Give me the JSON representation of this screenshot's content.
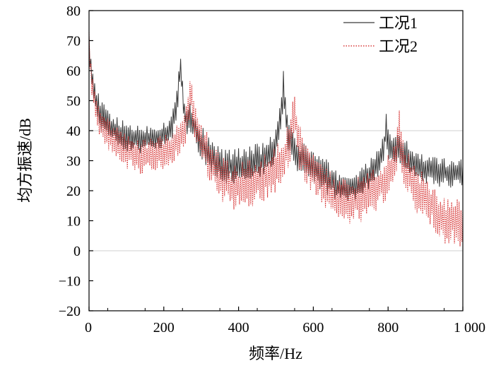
{
  "chart_data": {
    "type": "line",
    "title": "",
    "xlabel": "频率/Hz",
    "ylabel": "均方振速/dB",
    "xlim": [
      0,
      1000
    ],
    "ylim": [
      -20,
      80
    ],
    "x_ticks": [
      0,
      200,
      400,
      600,
      800,
      1000
    ],
    "x_tick_labels": [
      "0",
      "200",
      "400",
      "600",
      "800",
      "1 000"
    ],
    "y_ticks": [
      -20,
      -10,
      0,
      10,
      20,
      30,
      40,
      50,
      60,
      70,
      80
    ],
    "y_tick_labels": [
      "−20",
      "−10",
      "0",
      "10",
      "20",
      "30",
      "40",
      "50",
      "60",
      "70",
      "80"
    ],
    "gridlines_y": [
      0,
      40
    ],
    "legend_position": "top-right",
    "series": [
      {
        "name": "工况1",
        "color": "#3a3a3a",
        "style": "solid",
        "points": [
          [
            0,
            70
          ],
          [
            5,
            62
          ],
          [
            10,
            56
          ],
          [
            15,
            52
          ],
          [
            20,
            49
          ],
          [
            30,
            46
          ],
          [
            40,
            44
          ],
          [
            50,
            42.5
          ],
          [
            60,
            41
          ],
          [
            70,
            40
          ],
          [
            80,
            39
          ],
          [
            90,
            38.5
          ],
          [
            100,
            38
          ],
          [
            120,
            37.5
          ],
          [
            140,
            37
          ],
          [
            160,
            37.2
          ],
          [
            180,
            37.5
          ],
          [
            200,
            38.5
          ],
          [
            215,
            40
          ],
          [
            225,
            43
          ],
          [
            235,
            49
          ],
          [
            240,
            55
          ],
          [
            245,
            62
          ],
          [
            250,
            54
          ],
          [
            255,
            47
          ],
          [
            260,
            43
          ],
          [
            270,
            45
          ],
          [
            280,
            42
          ],
          [
            290,
            38
          ],
          [
            300,
            36
          ],
          [
            310,
            34
          ],
          [
            320,
            32
          ],
          [
            330,
            31
          ],
          [
            340,
            30
          ],
          [
            350,
            29
          ],
          [
            360,
            28.5
          ],
          [
            370,
            28
          ],
          [
            380,
            28
          ],
          [
            390,
            28
          ],
          [
            400,
            28.5
          ],
          [
            420,
            29
          ],
          [
            440,
            29.5
          ],
          [
            460,
            30
          ],
          [
            480,
            31
          ],
          [
            490,
            33
          ],
          [
            500,
            36
          ],
          [
            510,
            42
          ],
          [
            515,
            48
          ],
          [
            520,
            54
          ],
          [
            525,
            48
          ],
          [
            530,
            40
          ],
          [
            540,
            35
          ],
          [
            550,
            33
          ],
          [
            560,
            31
          ],
          [
            580,
            30
          ],
          [
            600,
            28
          ],
          [
            620,
            26
          ],
          [
            640,
            24
          ],
          [
            660,
            22
          ],
          [
            680,
            21
          ],
          [
            700,
            21
          ],
          [
            720,
            22
          ],
          [
            740,
            24
          ],
          [
            760,
            27
          ],
          [
            780,
            31
          ],
          [
            790,
            36
          ],
          [
            795,
            41
          ],
          [
            800,
            36
          ],
          [
            810,
            33
          ],
          [
            820,
            34
          ],
          [
            830,
            34
          ],
          [
            840,
            33
          ],
          [
            850,
            32
          ],
          [
            860,
            30
          ],
          [
            880,
            28
          ],
          [
            900,
            27
          ],
          [
            920,
            26.5
          ],
          [
            940,
            26
          ],
          [
            960,
            26
          ],
          [
            980,
            26
          ],
          [
            1000,
            26
          ]
        ],
        "ripple": [
          [
            0,
            300,
            5
          ],
          [
            300,
            640,
            6
          ],
          [
            640,
            1000,
            5
          ]
        ]
      },
      {
        "name": "工况2",
        "color": "#d83a3a",
        "style": "dotted",
        "points": [
          [
            0,
            67
          ],
          [
            5,
            60
          ],
          [
            10,
            54
          ],
          [
            15,
            50
          ],
          [
            20,
            47
          ],
          [
            30,
            43
          ],
          [
            40,
            41
          ],
          [
            50,
            39
          ],
          [
            60,
            37
          ],
          [
            70,
            36
          ],
          [
            80,
            35
          ],
          [
            90,
            34
          ],
          [
            100,
            33
          ],
          [
            120,
            32
          ],
          [
            140,
            31.5
          ],
          [
            160,
            31.5
          ],
          [
            180,
            32
          ],
          [
            200,
            32.5
          ],
          [
            215,
            34
          ],
          [
            230,
            36
          ],
          [
            245,
            38
          ],
          [
            255,
            40
          ],
          [
            265,
            46
          ],
          [
            270,
            52
          ],
          [
            275,
            50
          ],
          [
            280,
            44
          ],
          [
            290,
            40
          ],
          [
            300,
            36
          ],
          [
            310,
            33
          ],
          [
            320,
            31
          ],
          [
            330,
            29
          ],
          [
            340,
            27
          ],
          [
            350,
            25
          ],
          [
            360,
            24
          ],
          [
            370,
            23
          ],
          [
            380,
            22
          ],
          [
            390,
            21.5
          ],
          [
            400,
            21.5
          ],
          [
            420,
            22
          ],
          [
            440,
            23
          ],
          [
            460,
            24
          ],
          [
            480,
            25
          ],
          [
            500,
            27
          ],
          [
            520,
            30
          ],
          [
            535,
            36
          ],
          [
            545,
            42
          ],
          [
            550,
            48
          ],
          [
            555,
            42
          ],
          [
            560,
            36
          ],
          [
            570,
            32
          ],
          [
            580,
            30
          ],
          [
            600,
            27
          ],
          [
            620,
            24
          ],
          [
            640,
            21
          ],
          [
            650,
            18
          ],
          [
            660,
            17
          ],
          [
            680,
            16
          ],
          [
            700,
            16
          ],
          [
            720,
            17
          ],
          [
            740,
            18.5
          ],
          [
            760,
            20
          ],
          [
            780,
            22
          ],
          [
            800,
            25
          ],
          [
            815,
            28
          ],
          [
            825,
            34
          ],
          [
            830,
            40
          ],
          [
            835,
            34
          ],
          [
            840,
            29
          ],
          [
            850,
            26
          ],
          [
            860,
            24
          ],
          [
            870,
            22
          ],
          [
            880,
            20
          ],
          [
            900,
            18
          ],
          [
            920,
            15
          ],
          [
            930,
            11
          ],
          [
            940,
            10
          ],
          [
            960,
            10
          ],
          [
            980,
            10
          ],
          [
            1000,
            9
          ]
        ],
        "ripple": [
          [
            0,
            300,
            6
          ],
          [
            300,
            640,
            8
          ],
          [
            640,
            1000,
            8
          ]
        ]
      }
    ]
  }
}
